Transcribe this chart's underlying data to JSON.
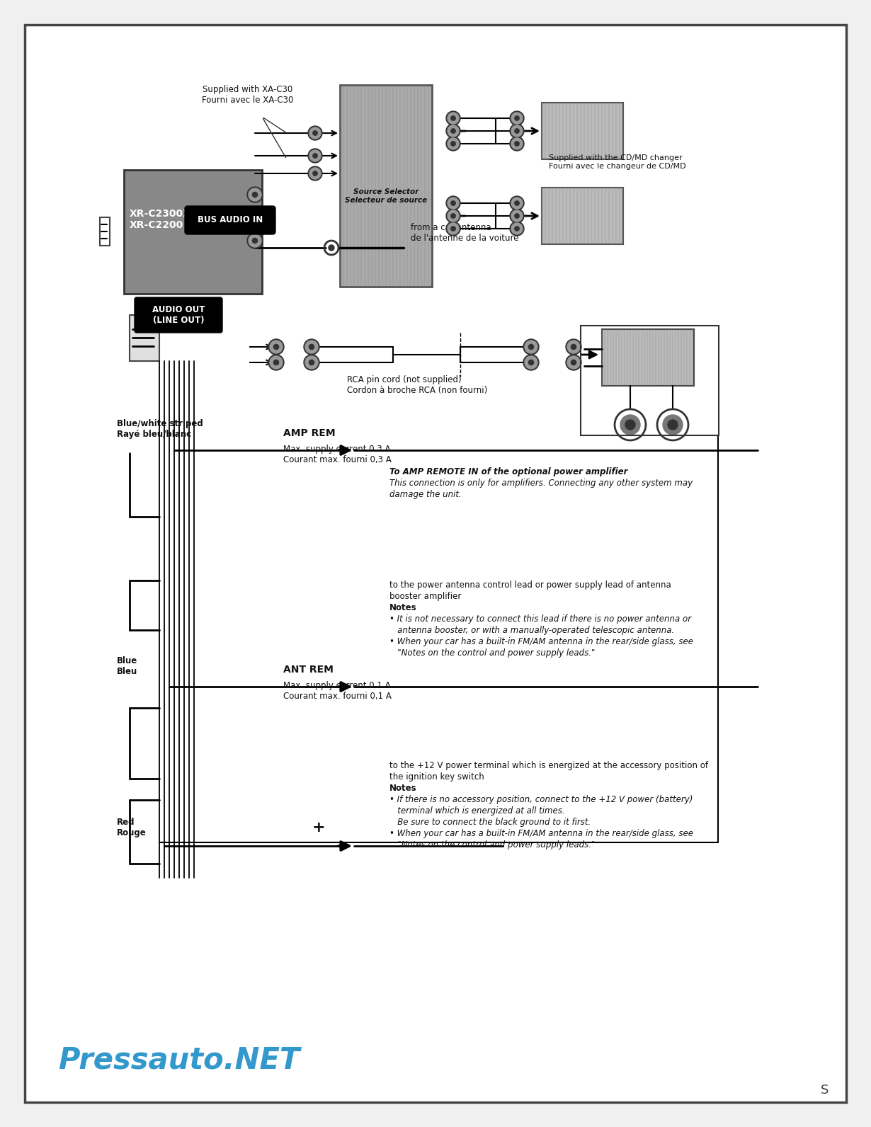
{
  "bg_color": "#f0f0f0",
  "page_bg": "#ffffff",
  "watermark": "Pressauto.NET",
  "watermark_color": "#3399cc",
  "unit_label": "XR-C2300X\nXR-C2200",
  "bus_audio_in": "BUS AUDIO IN",
  "audio_out": "AUDIO OUT\n(LINE OUT)",
  "supplied_xa_c30": "Supplied with XA-C30\nFourni avec le XA-C30",
  "supplied_cd_md": "Supplied with the CD/MD changer\nFourni avec le changeur de CD/MD",
  "from_car_antenna": "from a car antenna\nde l'antenne de la voiture",
  "source_selector_label": "Source Selector\nSelecteur de source",
  "rca_pin_cord": "RCA pin cord (not supplied)\nCordon à broche RCA (non fourni)",
  "blue_white_striped": "Blue/white striped\nRayé bleu/blanc",
  "amp_rem": "AMP REM",
  "amp_max_current": "Max. supply current 0.3 A\nCourant max. fourni 0,3 A",
  "amp_remote_note_line1": "To AMP REMOTE IN of the optional power amplifier",
  "amp_remote_note_line2": "This connection is only for amplifiers. Connecting any other system may",
  "amp_remote_note_line3": "damage the unit.",
  "blue_label": "Blue\nBleu",
  "ant_rem": "ANT REM",
  "ant_max_current": "Max. supply current 0.1 A\nCourant max. fourni 0,1 A",
  "ant_note1": "to the power antenna control lead or power supply lead of antenna",
  "ant_note2": "booster amplifier",
  "ant_note3": "Notes",
  "ant_note4": "• It is not necessary to connect this lead if there is no power antenna or",
  "ant_note5": "   antenna booster, or with a manually-operated telescopic antenna.",
  "ant_note6": "• When your car has a built-in FM/AM antenna in the rear/side glass, see",
  "ant_note7": "   \"Notes on the control and power supply leads.\"",
  "red_label": "Red\nRouge",
  "red_note1": "to the +12 V power terminal which is energized at the accessory position of",
  "red_note2": "the ignition key switch",
  "red_note3": "Notes",
  "red_note4": "• If there is no accessory position, connect to the +12 V power (battery)",
  "red_note5": "   terminal which is energized at all times.",
  "red_note6": "   Be sure to connect the black ground to it first.",
  "red_note7": "• When your car has a built-in FM/AM antenna in the rear/side glass, see",
  "red_note8": "   \"Notes on the control and power supply leads.\""
}
